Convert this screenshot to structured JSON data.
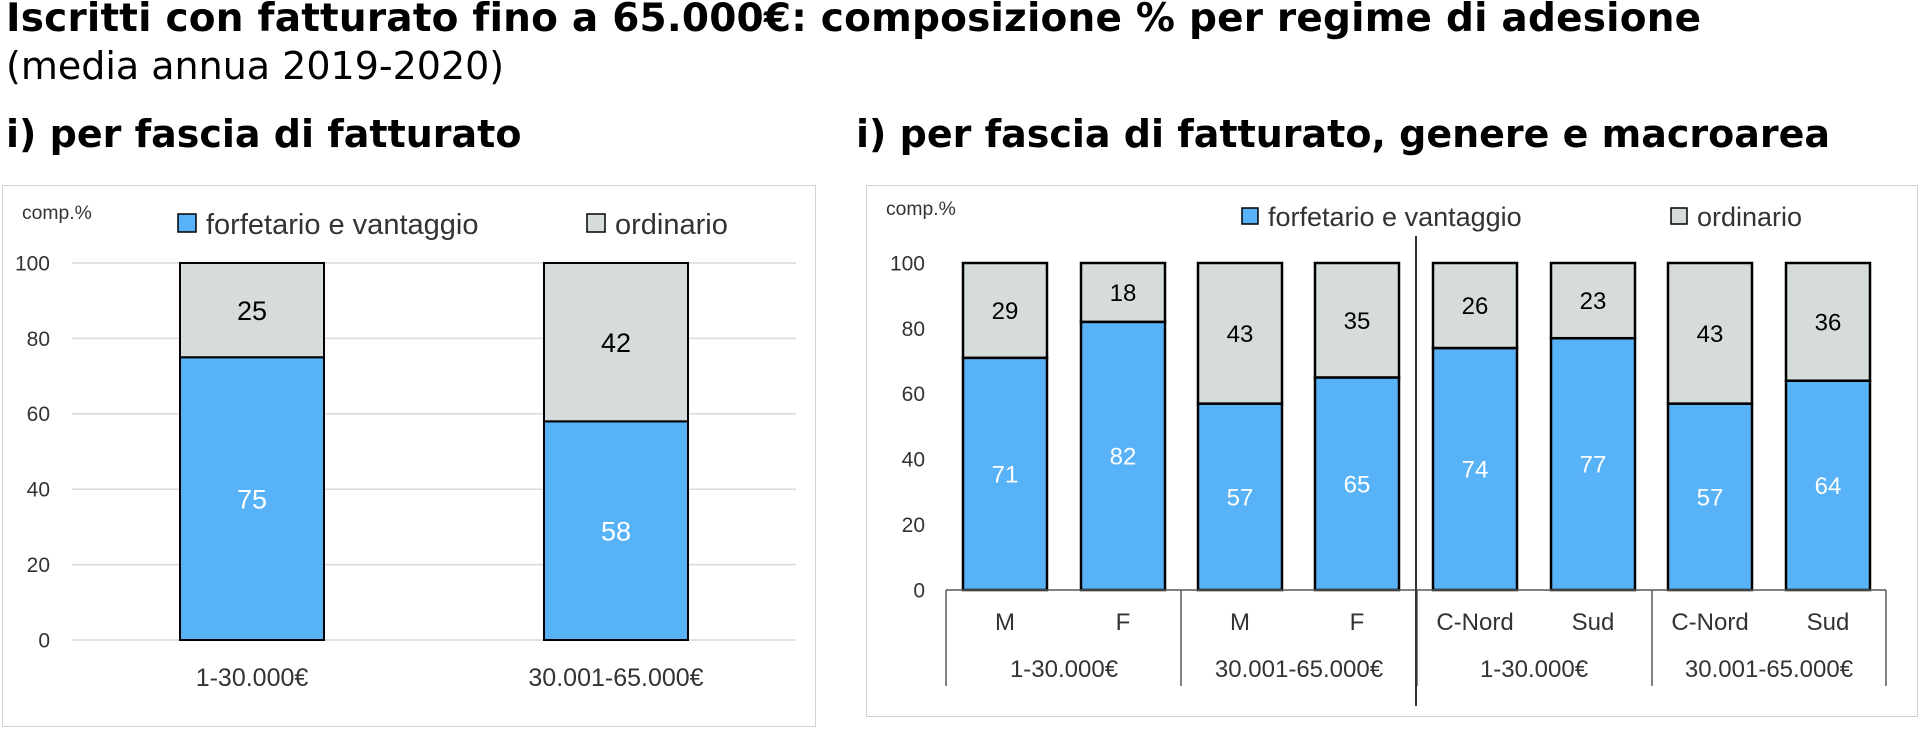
{
  "header": {
    "title": "Iscritti con fatturato fino a 65.000€: composizione % per regime di adesione",
    "subtitle": "(media annua 2019-2020)",
    "left_section": "i) per fascia di fatturato",
    "right_section": "i) per fascia di fatturato, genere e macroarea"
  },
  "colors": {
    "forfetario": "#58b2f8",
    "ordinario": "#d6dcd9",
    "grid": "#d9d9d9",
    "axis": "#595959"
  },
  "chart_data": [
    {
      "type": "bar",
      "stacked": true,
      "ylabel": "comp.%",
      "ylim": [
        0,
        100
      ],
      "yticks": [
        "0",
        "20",
        "40",
        "60",
        "80",
        "100"
      ],
      "grid": true,
      "legend_position": "top",
      "categories": [
        "1-30.000€",
        "30.001-65.000€"
      ],
      "series": [
        {
          "name": "forfetario e vantaggio",
          "values": [
            75,
            58
          ]
        },
        {
          "name": "ordinario",
          "values": [
            25,
            42
          ]
        }
      ]
    },
    {
      "type": "bar",
      "stacked": true,
      "ylabel": "comp.%",
      "ylim": [
        0,
        100
      ],
      "yticks": [
        "0",
        "20",
        "40",
        "60",
        "80",
        "100"
      ],
      "grid": false,
      "legend_position": "top",
      "categories": [
        "M",
        "F",
        "M",
        "F",
        "C-Nord",
        "Sud",
        "C-Nord",
        "Sud"
      ],
      "groups": [
        "1-30.000€",
        "30.001-65.000€",
        "1-30.000€",
        "30.001-65.000€"
      ],
      "series": [
        {
          "name": "forfetario e vantaggio",
          "values": [
            71,
            82,
            57,
            65,
            74,
            77,
            57,
            64
          ]
        },
        {
          "name": "ordinario",
          "values": [
            29,
            18,
            43,
            35,
            26,
            23,
            43,
            36
          ]
        }
      ]
    }
  ]
}
